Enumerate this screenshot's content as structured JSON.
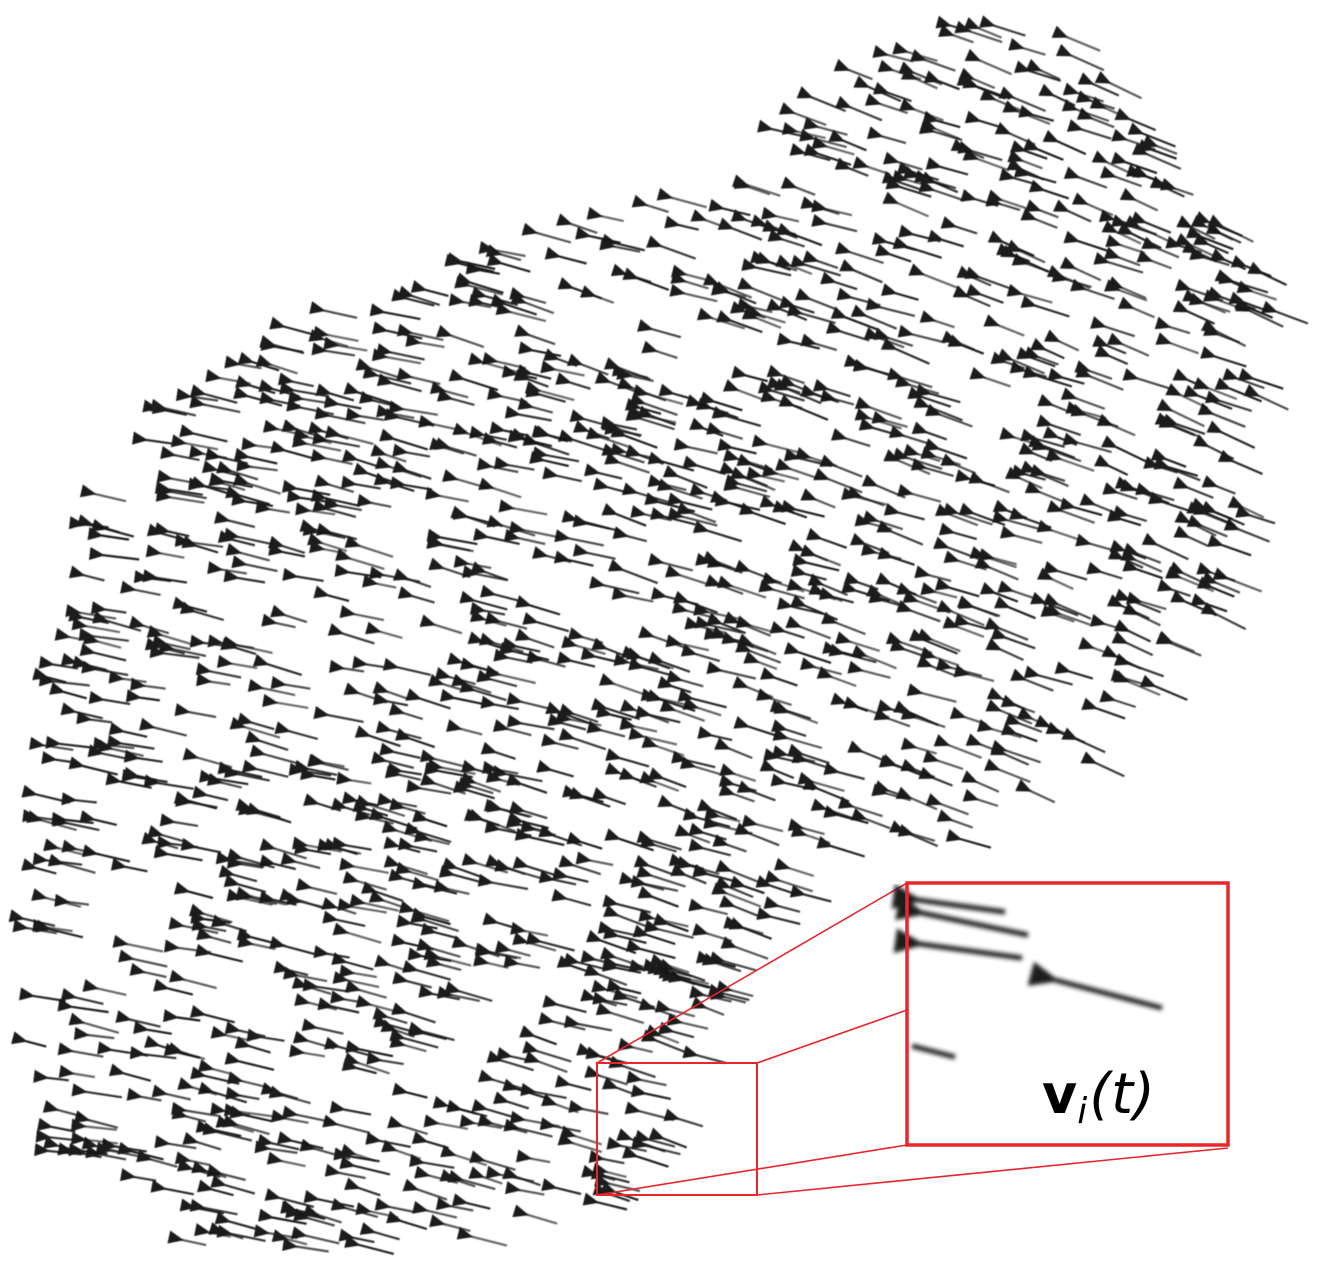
{
  "figure": {
    "description_type": "velocity-field",
    "arrow_color": "#1a1a1a",
    "highlight_color": "#e8262b",
    "inset_label": {
      "symbol": "v",
      "subscript": "i",
      "argument": "(t)"
    }
  }
}
